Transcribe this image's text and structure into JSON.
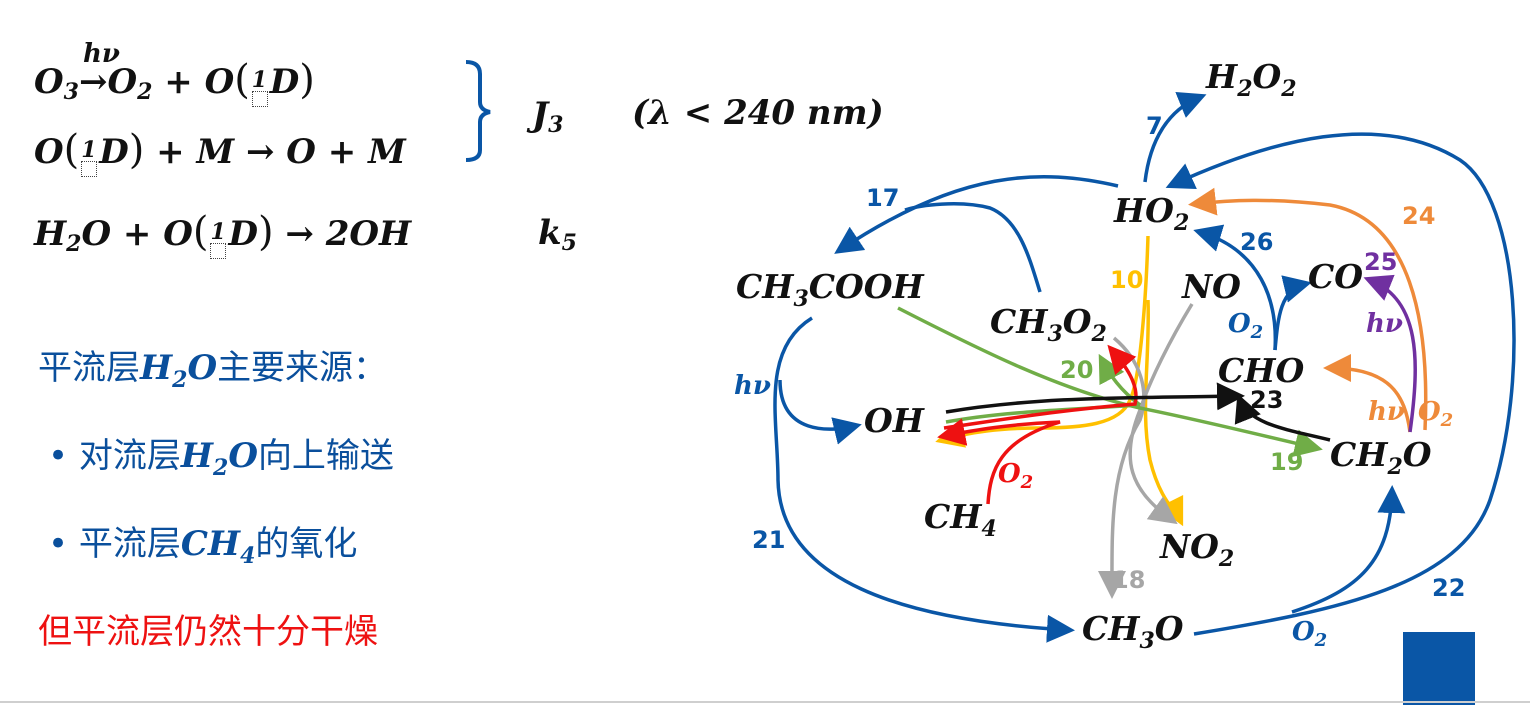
{
  "equations": {
    "eq1": {
      "lhs": "O",
      "lhs_sub": "3",
      "over": "hν",
      "arrow": "→",
      "p1": "O",
      "p1_sub": "2",
      "plus": "+",
      "p2": "O",
      "frac_top": "1",
      "tail": "D"
    },
    "eq2": {
      "a": "O",
      "frac_top": "1",
      "b": "D",
      "rest": "+ M → O + M"
    },
    "eq3": {
      "a": "H",
      "a_sub": "2",
      "b": "O + O",
      "frac_top": "1",
      "c": "D",
      "rest": "→ 2OH"
    },
    "j3": {
      "main": "J",
      "sub": "3"
    },
    "lambda": "(λ < 240 nm)",
    "k5": {
      "main": "k",
      "sub": "5"
    }
  },
  "text": {
    "source_title_a": "平流层",
    "source_title_h": "H",
    "source_title_sub": "2",
    "source_title_o": "O",
    "source_title_b": "主要来源：",
    "bullet": "•",
    "item1_a": "对流层",
    "item1_h": "H",
    "item1_sub": "2",
    "item1_o": "O",
    "item1_b": "向上输送",
    "item2_a": "平流层",
    "item2_ch": "CH",
    "item2_sub": "4",
    "item2_b": "的氧化",
    "conclusion": "但平流层仍然十分干燥"
  },
  "molecules": {
    "h2o2": {
      "a": "H",
      "s1": "2",
      "b": "O",
      "s2": "2"
    },
    "ho2": {
      "a": "HO",
      "s": "2"
    },
    "ch3cooh": {
      "a": "CH",
      "s": "3",
      "b": "COOH"
    },
    "ch3o2": {
      "a": "CH",
      "s1": "3",
      "b": "O",
      "s2": "2"
    },
    "no": "NO",
    "co": "CO",
    "cho": "CHO",
    "oh": "OH",
    "ch2o": {
      "a": "CH",
      "s": "2",
      "b": "O"
    },
    "ch4": {
      "a": "CH",
      "s": "4"
    },
    "no2": {
      "a": "NO",
      "s": "2"
    },
    "ch3o": {
      "a": "CH",
      "s": "3",
      "b": "O"
    }
  },
  "labels": {
    "r7": "7",
    "r17": "17",
    "r26": "26",
    "r24": "24",
    "r10": "10",
    "r25": "25",
    "r20": "20",
    "r23": "23",
    "r19": "19",
    "r21": "21",
    "r18": "18",
    "r22": "22",
    "hv_left": "hν",
    "hv_purple": "hν",
    "hv_orange": "hν",
    "o2_blue_cho": "O",
    "o2_blue_cho_sub": "2",
    "o2_red": "O",
    "o2_red_sub": "2",
    "o2_orange": "O",
    "o2_orange_sub": "2",
    "o2_bottom": "O",
    "o2_bottom_sub": "2"
  },
  "colors": {
    "blue": "#0a56a6",
    "orange": "#ee8a3a",
    "yellow": "#ffc000",
    "green": "#70ad47",
    "red": "#ee1111",
    "gray": "#a6a6a6",
    "purple": "#7030a0",
    "black": "#111111"
  }
}
